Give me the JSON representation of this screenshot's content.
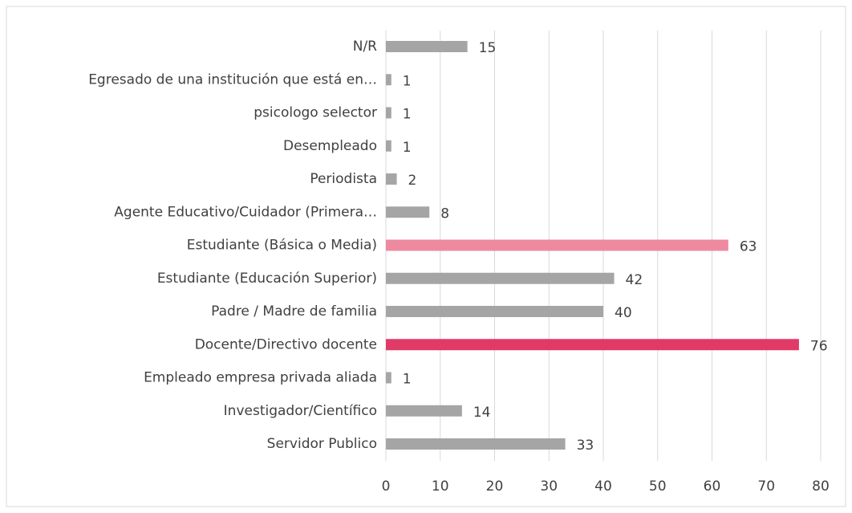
{
  "chart_data": {
    "type": "barh",
    "categories": [
      "N/R",
      "Egresado de una institución que está en…",
      "psicologo selector",
      "Desempleado",
      "Periodista",
      "Agente Educativo/Cuidador (Primera…",
      "Estudiante (Básica o Media)",
      "Estudiante (Educación Superior)",
      "Padre / Madre de familia",
      "Docente/Directivo docente",
      "Empleado empresa privada aliada",
      "Investigador/Científico",
      "Servidor Publico"
    ],
    "values": [
      15,
      1,
      1,
      1,
      2,
      8,
      63,
      42,
      40,
      76,
      1,
      14,
      33
    ],
    "colors": [
      "#a5a5a5",
      "#a5a5a5",
      "#a5a5a5",
      "#a5a5a5",
      "#a5a5a5",
      "#a5a5a5",
      "#ee8aa0",
      "#a5a5a5",
      "#a5a5a5",
      "#e03a66",
      "#a5a5a5",
      "#a5a5a5",
      "#a5a5a5"
    ],
    "xlim": [
      0,
      80
    ],
    "xticks": [
      0,
      10,
      20,
      30,
      40,
      50,
      60,
      70,
      80
    ],
    "grid": true
  }
}
